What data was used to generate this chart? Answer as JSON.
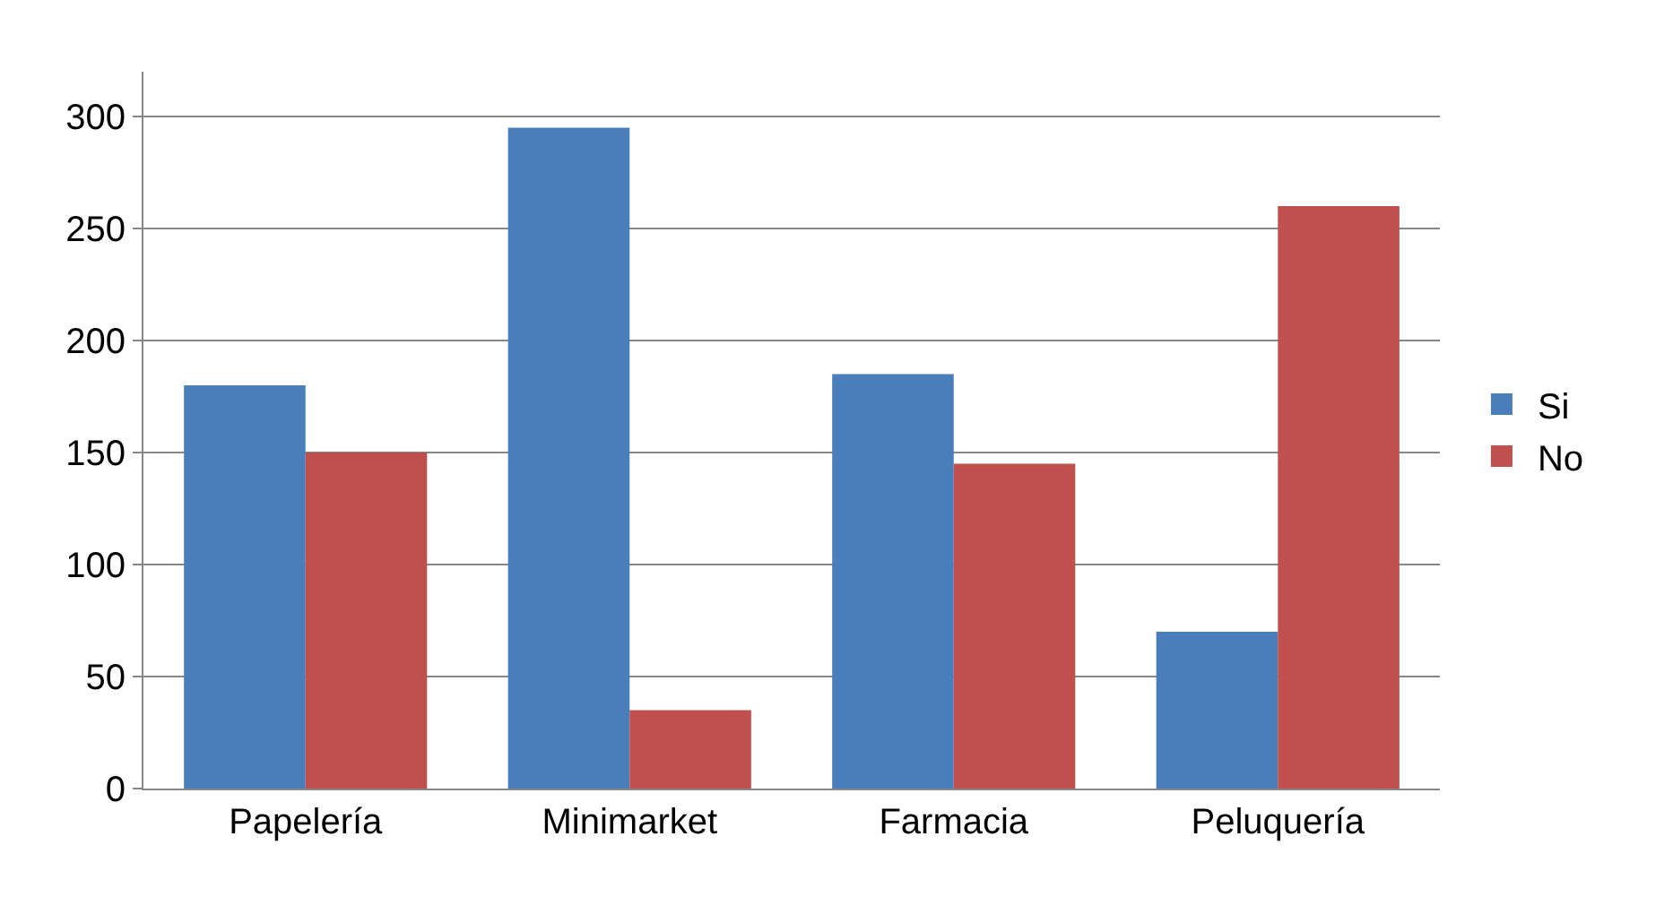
{
  "chart_data": {
    "type": "bar",
    "categories": [
      "Papelería",
      "Minimarket",
      "Farmacia",
      "Peluquería"
    ],
    "series": [
      {
        "name": "Si",
        "color": "#4a7ebb",
        "values": [
          180,
          295,
          185,
          70
        ]
      },
      {
        "name": "No",
        "color": "#c0504d",
        "values": [
          150,
          35,
          145,
          260
        ]
      }
    ],
    "ylim": [
      0,
      320
    ],
    "yticks": [
      0,
      50,
      100,
      150,
      200,
      250,
      300
    ],
    "grid": "y",
    "legend": "right"
  }
}
